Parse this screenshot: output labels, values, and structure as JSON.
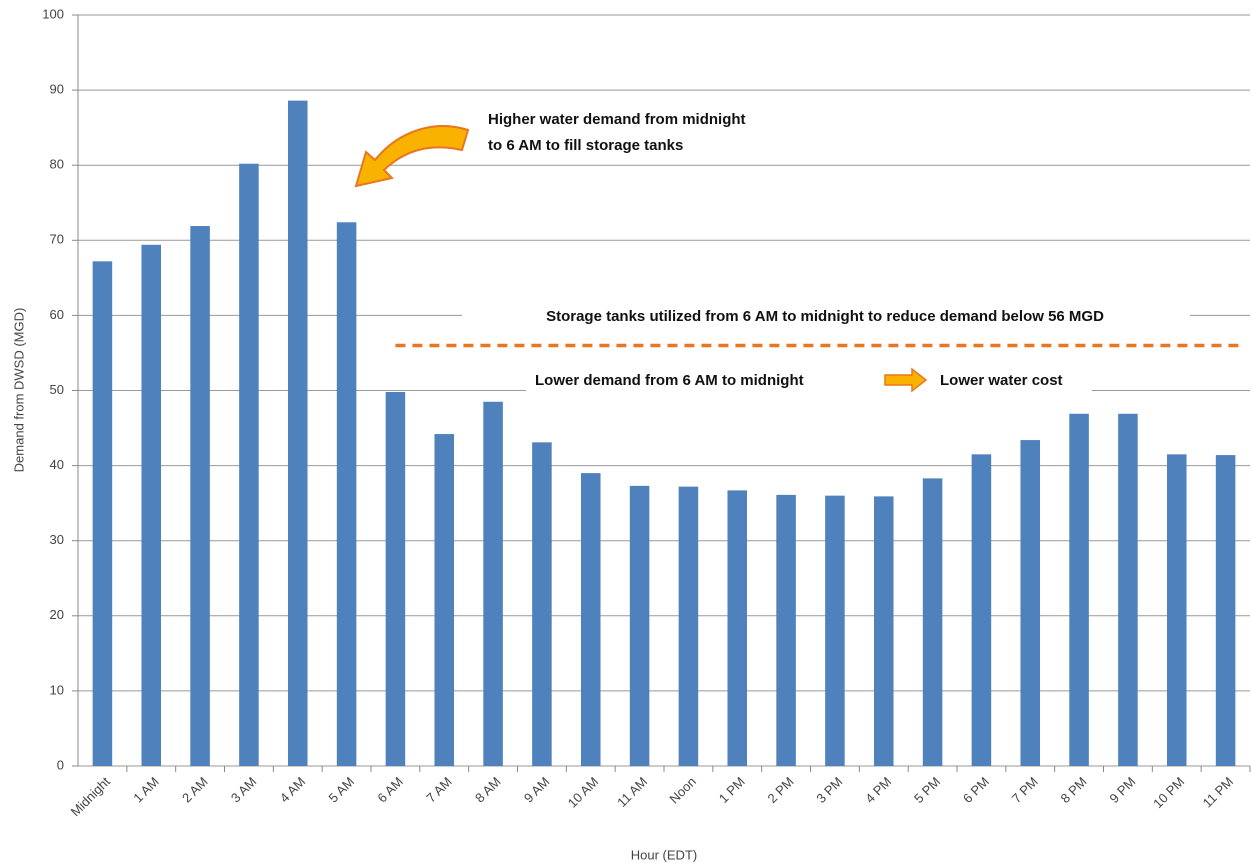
{
  "chart_data": {
    "type": "bar",
    "categories": [
      "Midnight",
      "1 AM",
      "2 AM",
      "3 AM",
      "4 AM",
      "5 AM",
      "6 AM",
      "7 AM",
      "8 AM",
      "9 AM",
      "10 AM",
      "11 AM",
      "Noon",
      "1 PM",
      "2 PM",
      "3 PM",
      "4 PM",
      "5 PM",
      "6 PM",
      "7 PM",
      "8 PM",
      "9 PM",
      "10 PM",
      "11 PM"
    ],
    "values": [
      67.2,
      69.4,
      71.9,
      80.2,
      88.6,
      72.4,
      49.8,
      44.2,
      48.5,
      43.1,
      39.0,
      37.3,
      37.2,
      36.7,
      36.1,
      36.0,
      35.9,
      38.3,
      41.5,
      43.4,
      46.9,
      46.9,
      41.5,
      41.4
    ],
    "color": "#4f81bd",
    "ylim": [
      0,
      100
    ],
    "yticks": [
      0,
      10,
      20,
      30,
      40,
      50,
      60,
      70,
      80,
      90,
      100
    ],
    "grid": true,
    "y_label": "Demand from DWSD (MGD)",
    "x_label": "Hour (EDT)",
    "reference_line": {
      "value": 56,
      "start": "6 AM",
      "color": "#e8771f"
    },
    "annotations": [
      "Higher water demand from midnight",
      "to 6 AM to fill storage tanks",
      "Storage tanks utilized from 6 AM to midnight to reduce demand below 56 MGD",
      "Lower demand from 6 AM to midnight",
      "Lower water cost"
    ]
  }
}
